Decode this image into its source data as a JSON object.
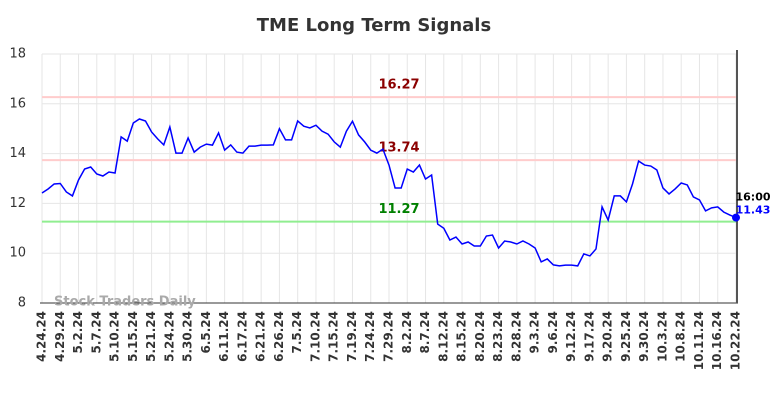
{
  "chart_data": {
    "type": "line",
    "title": "TME Long Term Signals",
    "watermark": "Stock Traders Daily",
    "categories": [
      "4.24.24",
      null,
      null,
      "4.29.24",
      null,
      null,
      "5.2.24",
      null,
      null,
      "5.7.24",
      null,
      null,
      "5.10.24",
      null,
      null,
      "5.15.24",
      null,
      null,
      "5.21.24",
      null,
      null,
      "5.24.24",
      null,
      null,
      "5.30.24",
      null,
      null,
      "6.5.24",
      null,
      null,
      "6.11.24",
      null,
      null,
      "6.17.24",
      null,
      null,
      "6.21.24",
      null,
      null,
      "6.26.24",
      null,
      null,
      "7.5.24",
      null,
      null,
      "7.10.24",
      null,
      null,
      "7.15.24",
      null,
      null,
      "7.19.24",
      null,
      null,
      "7.24.24",
      null,
      null,
      "7.29.24",
      null,
      null,
      "8.2.24",
      null,
      null,
      "8.7.24",
      null,
      null,
      "8.12.24",
      null,
      null,
      "8.15.24",
      null,
      null,
      "8.20.24",
      null,
      null,
      "8.23.24",
      null,
      null,
      "8.28.24",
      null,
      null,
      "9.3.24",
      null,
      null,
      "9.6.24",
      null,
      null,
      "9.12.24",
      null,
      null,
      "9.17.24",
      null,
      null,
      "9.20.24",
      null,
      null,
      "9.25.24",
      null,
      null,
      "9.30.24",
      null,
      null,
      "10.3.24",
      null,
      null,
      "10.8.24",
      null,
      null,
      "10.11.24",
      null,
      null,
      "10.16.24",
      null,
      null,
      "10.22.24"
    ],
    "values": [
      12.42,
      12.58,
      12.78,
      12.8,
      12.46,
      12.3,
      12.94,
      13.38,
      13.46,
      13.18,
      13.1,
      13.26,
      13.22,
      14.67,
      14.5,
      15.23,
      15.39,
      15.31,
      14.87,
      14.59,
      14.35,
      15.07,
      14.02,
      14.02,
      14.63,
      14.06,
      14.26,
      14.38,
      14.34,
      14.83,
      14.14,
      14.35,
      14.06,
      14.02,
      14.3,
      14.3,
      14.34,
      14.34,
      14.35,
      15.0,
      14.55,
      14.55,
      15.31,
      15.1,
      15.03,
      15.14,
      14.9,
      14.78,
      14.47,
      14.26,
      14.9,
      15.3,
      14.75,
      14.47,
      14.14,
      14.02,
      14.18,
      13.54,
      12.62,
      12.62,
      13.38,
      13.26,
      13.54,
      12.98,
      13.14,
      11.17,
      11.0,
      10.53,
      10.65,
      10.37,
      10.45,
      10.29,
      10.29,
      10.69,
      10.73,
      10.21,
      10.49,
      10.45,
      10.37,
      10.49,
      10.37,
      10.21,
      9.65,
      9.77,
      9.53,
      9.49,
      9.52,
      9.52,
      9.49,
      9.97,
      9.89,
      10.17,
      11.86,
      11.33,
      12.3,
      12.3,
      12.06,
      12.78,
      13.7,
      13.54,
      13.5,
      13.34,
      12.62,
      12.38,
      12.58,
      12.82,
      12.74,
      12.26,
      12.14,
      11.7,
      11.82,
      11.86,
      11.65,
      11.53,
      11.43
    ],
    "color": "#0000ff",
    "last_time": "16:00",
    "levels": [
      {
        "value": 16.27,
        "line_color": "#ffcccc",
        "label_color": "#8b0000"
      },
      {
        "value": 13.74,
        "line_color": "#ffcccc",
        "label_color": "#8b0000"
      },
      {
        "value": 11.27,
        "line_color": "#90ee90",
        "label_color": "#008000"
      }
    ],
    "ylim": [
      8,
      18
    ],
    "yticks": [
      8,
      10,
      12,
      14,
      16,
      18
    ],
    "grid": true
  }
}
